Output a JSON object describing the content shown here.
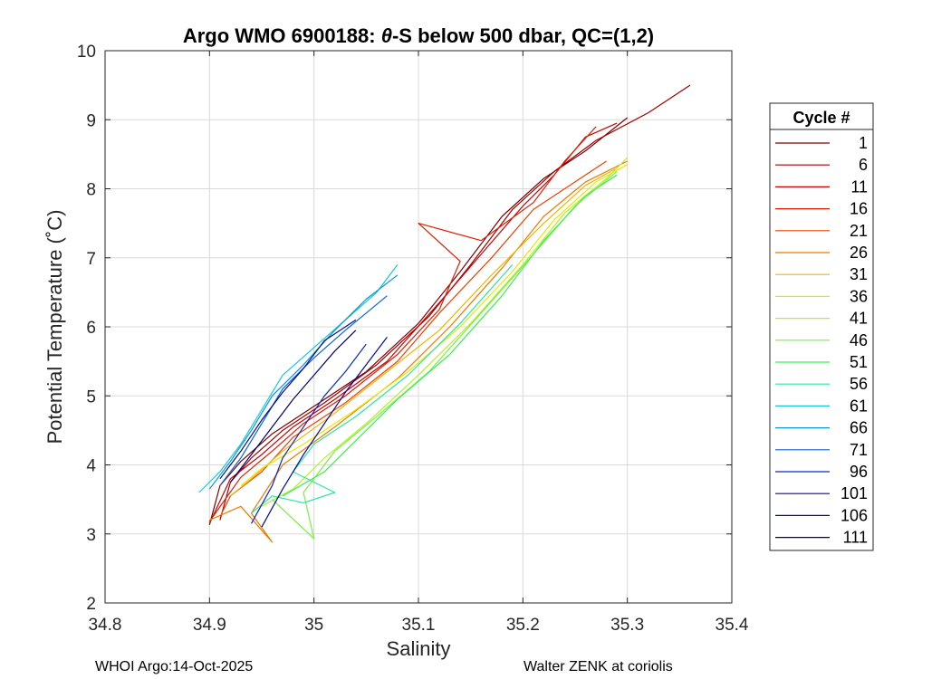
{
  "colors": {
    "grid": "#d9d9d9",
    "axis": "#262626",
    "background": "#ffffff"
  },
  "footer": {
    "left": "WHOI Argo:14-Oct-2025",
    "right": "Walter ZENK at coriolis"
  },
  "chart_data": {
    "type": "line",
    "title_prefix": "Argo WMO 6900188: ",
    "title_theta": "θ",
    "title_suffix": "-S below 500 dbar,  QC=(1,2)",
    "xlabel": "Salinity",
    "ylabel": "Potential Temperature (˚C)",
    "xlim": [
      34.8,
      35.4
    ],
    "ylim": [
      2,
      10
    ],
    "xticks": [
      "34.8",
      "34.9",
      "35",
      "35.1",
      "35.2",
      "35.3",
      "35.4"
    ],
    "yticks": [
      "2",
      "3",
      "4",
      "5",
      "6",
      "7",
      "8",
      "9",
      "10"
    ],
    "grid": true,
    "legend": {
      "title": "Cycle #",
      "position": "outside-right",
      "entries": [
        {
          "label": "1",
          "color": "#7f0000"
        },
        {
          "label": "6",
          "color": "#a00000"
        },
        {
          "label": "11",
          "color": "#c80000"
        },
        {
          "label": "16",
          "color": "#e01c00"
        },
        {
          "label": "21",
          "color": "#f04000"
        },
        {
          "label": "26",
          "color": "#f07800"
        },
        {
          "label": "31",
          "color": "#f0b400"
        },
        {
          "label": "36",
          "color": "#e8e800"
        },
        {
          "label": "41",
          "color": "#b4f028"
        },
        {
          "label": "46",
          "color": "#78f040"
        },
        {
          "label": "51",
          "color": "#3cf050"
        },
        {
          "label": "56",
          "color": "#28e8a0"
        },
        {
          "label": "61",
          "color": "#14c8e0"
        },
        {
          "label": "66",
          "color": "#0a96d2"
        },
        {
          "label": "71",
          "color": "#0a64d2"
        },
        {
          "label": "96",
          "color": "#0a28c8"
        },
        {
          "label": "101",
          "color": "#000aa0"
        },
        {
          "label": "106",
          "color": "#000a8c"
        },
        {
          "label": "111",
          "color": "#00006e"
        }
      ]
    },
    "series": [
      {
        "name": "1",
        "color": "#7f0000",
        "points": [
          [
            34.9,
            3.13
          ],
          [
            34.91,
            3.7
          ],
          [
            34.93,
            4.05
          ],
          [
            34.96,
            4.45
          ],
          [
            35.0,
            4.85
          ],
          [
            35.05,
            5.35
          ],
          [
            35.1,
            6.05
          ],
          [
            35.14,
            6.8
          ],
          [
            35.18,
            7.6
          ],
          [
            35.22,
            8.15
          ],
          [
            35.26,
            8.55
          ],
          [
            35.3,
            9.03
          ]
        ]
      },
      {
        "name": "6",
        "color": "#a00000",
        "points": [
          [
            34.91,
            3.2
          ],
          [
            34.92,
            3.75
          ],
          [
            34.94,
            4.1
          ],
          [
            34.97,
            4.5
          ],
          [
            35.01,
            4.9
          ],
          [
            35.06,
            5.45
          ],
          [
            35.11,
            6.15
          ],
          [
            35.15,
            6.9
          ],
          [
            35.19,
            7.7
          ],
          [
            35.23,
            8.25
          ],
          [
            35.27,
            8.7
          ],
          [
            35.32,
            9.1
          ],
          [
            35.36,
            9.5
          ]
        ]
      },
      {
        "name": "11",
        "color": "#c80000",
        "points": [
          [
            34.9,
            3.15
          ],
          [
            34.92,
            3.8
          ],
          [
            34.95,
            4.15
          ],
          [
            34.98,
            4.55
          ],
          [
            35.02,
            4.95
          ],
          [
            35.07,
            5.5
          ],
          [
            35.12,
            6.35
          ],
          [
            35.16,
            7.05
          ],
          [
            35.2,
            7.75
          ],
          [
            35.23,
            8.2
          ],
          [
            35.26,
            8.75
          ],
          [
            35.29,
            8.95
          ]
        ]
      },
      {
        "name": "16",
        "color": "#e01c00",
        "points": [
          [
            34.9,
            3.18
          ],
          [
            34.93,
            3.82
          ],
          [
            34.96,
            4.2
          ],
          [
            34.99,
            4.6
          ],
          [
            35.03,
            5.0
          ],
          [
            35.08,
            5.6
          ],
          [
            35.12,
            6.25
          ],
          [
            35.14,
            6.95
          ],
          [
            35.1,
            7.5
          ],
          [
            35.16,
            7.25
          ],
          [
            35.21,
            7.8
          ],
          [
            35.24,
            8.4
          ],
          [
            35.27,
            8.9
          ]
        ]
      },
      {
        "name": "21",
        "color": "#f04000",
        "points": [
          [
            34.91,
            3.25
          ],
          [
            34.92,
            3.55
          ],
          [
            34.95,
            3.9
          ],
          [
            34.98,
            4.4
          ],
          [
            35.03,
            4.9
          ],
          [
            35.08,
            5.5
          ],
          [
            35.12,
            6.2
          ],
          [
            35.17,
            7.0
          ],
          [
            35.21,
            7.7
          ],
          [
            35.25,
            8.1
          ],
          [
            35.28,
            8.4
          ]
        ]
      },
      {
        "name": "26",
        "color": "#f07800",
        "points": [
          [
            34.9,
            3.2
          ],
          [
            34.93,
            3.4
          ],
          [
            34.96,
            2.88
          ],
          [
            34.94,
            3.3
          ],
          [
            34.97,
            4.0
          ],
          [
            35.02,
            4.55
          ],
          [
            35.08,
            5.25
          ],
          [
            35.13,
            6.0
          ],
          [
            35.18,
            6.85
          ],
          [
            35.22,
            7.6
          ],
          [
            35.26,
            8.1
          ],
          [
            35.3,
            8.4
          ]
        ]
      },
      {
        "name": "31",
        "color": "#f0b400",
        "points": [
          [
            34.92,
            3.55
          ],
          [
            34.94,
            3.8
          ],
          [
            34.97,
            4.2
          ],
          [
            35.02,
            4.75
          ],
          [
            35.07,
            5.35
          ],
          [
            35.12,
            5.95
          ],
          [
            35.17,
            6.75
          ],
          [
            35.22,
            7.5
          ],
          [
            35.26,
            8.05
          ],
          [
            35.29,
            8.3
          ]
        ]
      },
      {
        "name": "36",
        "color": "#e8e800",
        "points": [
          [
            34.93,
            3.7
          ],
          [
            34.95,
            3.95
          ],
          [
            34.99,
            4.3
          ],
          [
            35.04,
            4.8
          ],
          [
            35.09,
            5.35
          ],
          [
            35.14,
            6.0
          ],
          [
            35.19,
            6.8
          ],
          [
            35.23,
            7.55
          ],
          [
            35.27,
            8.1
          ],
          [
            35.3,
            8.35
          ]
        ]
      },
      {
        "name": "41",
        "color": "#b4f028",
        "points": [
          [
            34.95,
            3.4
          ],
          [
            34.98,
            3.65
          ],
          [
            35.01,
            4.1
          ],
          [
            35.05,
            4.6
          ],
          [
            35.1,
            5.3
          ],
          [
            35.15,
            6.05
          ],
          [
            35.2,
            6.9
          ],
          [
            35.24,
            7.65
          ],
          [
            35.28,
            8.15
          ],
          [
            35.3,
            8.45
          ]
        ]
      },
      {
        "name": "46",
        "color": "#78f040",
        "points": [
          [
            34.96,
            3.5
          ],
          [
            35.0,
            2.93
          ],
          [
            34.99,
            3.6
          ],
          [
            35.02,
            4.2
          ],
          [
            35.06,
            4.7
          ],
          [
            35.11,
            5.35
          ],
          [
            35.16,
            6.2
          ],
          [
            35.21,
            7.05
          ],
          [
            35.25,
            7.75
          ],
          [
            35.29,
            8.25
          ]
        ]
      },
      {
        "name": "51",
        "color": "#3cf050",
        "points": [
          [
            34.97,
            3.55
          ],
          [
            35.01,
            3.9
          ],
          [
            35.04,
            4.35
          ],
          [
            35.08,
            4.95
          ],
          [
            35.13,
            5.6
          ],
          [
            35.18,
            6.45
          ],
          [
            35.22,
            7.25
          ],
          [
            35.26,
            7.9
          ],
          [
            35.29,
            8.2
          ]
        ]
      },
      {
        "name": "56",
        "color": "#28e8a0",
        "points": [
          [
            34.94,
            3.3
          ],
          [
            34.96,
            3.55
          ],
          [
            34.99,
            3.45
          ],
          [
            35.02,
            3.6
          ],
          [
            34.98,
            3.9
          ],
          [
            35.0,
            4.3
          ],
          [
            35.04,
            4.7
          ],
          [
            35.09,
            5.3
          ],
          [
            35.14,
            6.05
          ],
          [
            35.19,
            6.9
          ]
        ]
      },
      {
        "name": "61",
        "color": "#14c8e0",
        "points": [
          [
            34.89,
            3.6
          ],
          [
            34.91,
            3.9
          ],
          [
            34.93,
            4.3
          ],
          [
            34.95,
            4.8
          ],
          [
            34.97,
            5.3
          ],
          [
            35.0,
            5.7
          ],
          [
            35.03,
            6.1
          ],
          [
            35.06,
            6.5
          ],
          [
            35.08,
            6.9
          ]
        ]
      },
      {
        "name": "66",
        "color": "#0a96d2",
        "points": [
          [
            34.9,
            3.65
          ],
          [
            34.92,
            4.05
          ],
          [
            34.94,
            4.5
          ],
          [
            34.96,
            5.0
          ],
          [
            34.99,
            5.45
          ],
          [
            35.02,
            5.95
          ],
          [
            35.05,
            6.4
          ],
          [
            35.08,
            6.75
          ]
        ]
      },
      {
        "name": "71",
        "color": "#0a64d2",
        "points": [
          [
            34.91,
            3.7
          ],
          [
            34.93,
            4.1
          ],
          [
            34.95,
            4.6
          ],
          [
            34.97,
            5.1
          ],
          [
            35.0,
            5.55
          ],
          [
            35.03,
            5.95
          ],
          [
            35.05,
            6.2
          ],
          [
            35.07,
            6.45
          ]
        ]
      },
      {
        "name": "96",
        "color": "#0a28c8",
        "points": [
          [
            34.94,
            3.15
          ],
          [
            34.96,
            3.7
          ],
          [
            34.97,
            4.1
          ],
          [
            34.99,
            4.55
          ],
          [
            35.01,
            5.0
          ],
          [
            35.03,
            5.35
          ],
          [
            35.05,
            5.75
          ]
        ]
      },
      {
        "name": "101",
        "color": "#000aa0",
        "points": [
          [
            34.95,
            3.1
          ],
          [
            34.97,
            3.65
          ],
          [
            34.99,
            4.15
          ],
          [
            35.01,
            4.6
          ],
          [
            35.03,
            5.05
          ],
          [
            35.05,
            5.45
          ],
          [
            35.07,
            5.85
          ]
        ]
      },
      {
        "name": "106",
        "color": "#000a8c",
        "points": [
          [
            34.91,
            3.8
          ],
          [
            34.93,
            4.2
          ],
          [
            34.95,
            4.65
          ],
          [
            34.97,
            5.05
          ],
          [
            34.99,
            5.4
          ],
          [
            35.01,
            5.8
          ],
          [
            35.04,
            6.1
          ]
        ]
      },
      {
        "name": "111",
        "color": "#00006e",
        "points": [
          [
            34.92,
            3.75
          ],
          [
            34.94,
            4.15
          ],
          [
            34.96,
            4.55
          ],
          [
            34.98,
            4.95
          ],
          [
            35.0,
            5.3
          ],
          [
            35.02,
            5.65
          ],
          [
            35.04,
            5.95
          ]
        ]
      }
    ]
  }
}
